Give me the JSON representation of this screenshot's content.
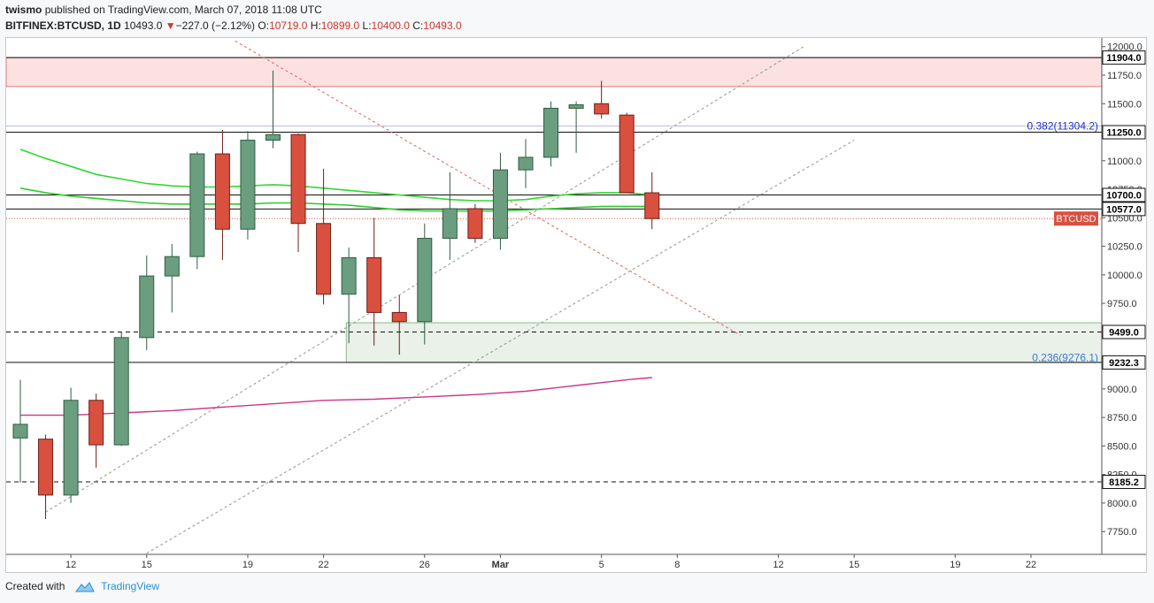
{
  "header": {
    "author": "twismo",
    "published_text": "published on TradingView.com, March 07, 2018 11:08 UTC",
    "symbol": "BITFINEX:BTCUSD, 1D",
    "last": "10493.0",
    "change_arrow": "▼",
    "change": "−227.0 (−2.12%)",
    "o_label": "O:",
    "o": "10719.0",
    "h_label": "H:",
    "h": "10899.0",
    "l_label": "L:",
    "l": "10400.0",
    "c_label": "C:",
    "c": "10493.0"
  },
  "footer": {
    "created_with": "Created with",
    "brand": "TradingView"
  },
  "chart_data": {
    "type": "candlestick",
    "ylim": [
      7550,
      12060
    ],
    "y_ticks": [
      7750,
      8000,
      8250,
      8500,
      8750,
      9000,
      9250,
      9500,
      9750,
      10000,
      10250,
      10500,
      10750,
      11000,
      11250,
      11500,
      11750,
      12000
    ],
    "y_tick_labels": [
      "7750.0",
      "8000.0",
      "8250.0",
      "8500.0",
      "8750.0",
      "9000.0",
      "9250.0",
      "9500.0",
      "9750.0",
      "10000.0",
      "10250.0",
      "10500.0",
      "10750.0",
      "11000.0",
      "11250.0",
      "11500.0",
      "11750.0",
      "12000.0"
    ],
    "x_ticks": [
      {
        "idx": 2,
        "label": "12"
      },
      {
        "idx": 5,
        "label": "15"
      },
      {
        "idx": 9,
        "label": "19"
      },
      {
        "idx": 12,
        "label": "22"
      },
      {
        "idx": 16,
        "label": "26"
      },
      {
        "idx": 19,
        "label": "Mar"
      },
      {
        "idx": 23,
        "label": "5"
      },
      {
        "idx": 26,
        "label": "8"
      },
      {
        "idx": 30,
        "label": "12"
      },
      {
        "idx": 33,
        "label": "15"
      },
      {
        "idx": 37,
        "label": "19"
      },
      {
        "idx": 40,
        "label": "22"
      }
    ],
    "candles": [
      {
        "o": 8570,
        "h": 9080,
        "l": 8180,
        "c": 8690
      },
      {
        "o": 8560,
        "h": 8600,
        "l": 7860,
        "c": 8070
      },
      {
        "o": 8070,
        "h": 9010,
        "l": 8000,
        "c": 8900
      },
      {
        "o": 8900,
        "h": 8960,
        "l": 8310,
        "c": 8510
      },
      {
        "o": 8510,
        "h": 9500,
        "l": 8500,
        "c": 9450
      },
      {
        "o": 9450,
        "h": 10170,
        "l": 9340,
        "c": 9990
      },
      {
        "o": 9990,
        "h": 10270,
        "l": 9670,
        "c": 10160
      },
      {
        "o": 10160,
        "h": 11080,
        "l": 10050,
        "c": 11060
      },
      {
        "o": 11060,
        "h": 11270,
        "l": 10130,
        "c": 10400
      },
      {
        "o": 10400,
        "h": 11260,
        "l": 10310,
        "c": 11180
      },
      {
        "o": 11180,
        "h": 11790,
        "l": 11110,
        "c": 11230
      },
      {
        "o": 11230,
        "h": 11240,
        "l": 10200,
        "c": 10450
      },
      {
        "o": 10450,
        "h": 10930,
        "l": 9740,
        "c": 9830
      },
      {
        "o": 9830,
        "h": 10240,
        "l": 9400,
        "c": 10150
      },
      {
        "o": 10150,
        "h": 10500,
        "l": 9380,
        "c": 9670
      },
      {
        "o": 9670,
        "h": 9820,
        "l": 9300,
        "c": 9590
      },
      {
        "o": 9590,
        "h": 10450,
        "l": 9390,
        "c": 10320
      },
      {
        "o": 10320,
        "h": 10900,
        "l": 10130,
        "c": 10580
      },
      {
        "o": 10580,
        "h": 10620,
        "l": 10280,
        "c": 10320
      },
      {
        "o": 10320,
        "h": 11070,
        "l": 10220,
        "c": 10920
      },
      {
        "o": 10920,
        "h": 11190,
        "l": 10760,
        "c": 11030
      },
      {
        "o": 11030,
        "h": 11520,
        "l": 10950,
        "c": 11460
      },
      {
        "o": 11460,
        "h": 11520,
        "l": 11070,
        "c": 11490
      },
      {
        "o": 11500,
        "h": 11700,
        "l": 11370,
        "c": 11410
      },
      {
        "o": 11400,
        "h": 11420,
        "l": 10730,
        "c": 10720
      },
      {
        "o": 10719,
        "h": 10899,
        "l": 10400,
        "c": 10493
      }
    ],
    "ma_fast": [
      [
        0,
        11100
      ],
      [
        1,
        11020
      ],
      [
        2,
        10950
      ],
      [
        3,
        10880
      ],
      [
        4,
        10840
      ],
      [
        5,
        10800
      ],
      [
        6,
        10780
      ],
      [
        7,
        10770
      ],
      [
        8,
        10770
      ],
      [
        9,
        10780
      ],
      [
        10,
        10790
      ],
      [
        11,
        10780
      ],
      [
        12,
        10760
      ],
      [
        13,
        10740
      ],
      [
        14,
        10720
      ],
      [
        15,
        10700
      ],
      [
        16,
        10680
      ],
      [
        17,
        10660
      ],
      [
        18,
        10650
      ],
      [
        19,
        10650
      ],
      [
        20,
        10660
      ],
      [
        21,
        10690
      ],
      [
        22,
        10710
      ],
      [
        23,
        10720
      ],
      [
        24,
        10720
      ],
      [
        25,
        10700
      ]
    ],
    "ma_slow": [
      [
        0,
        10760
      ],
      [
        1,
        10720
      ],
      [
        2,
        10690
      ],
      [
        3,
        10670
      ],
      [
        4,
        10650
      ],
      [
        5,
        10630
      ],
      [
        6,
        10620
      ],
      [
        7,
        10620
      ],
      [
        8,
        10620
      ],
      [
        9,
        10620
      ],
      [
        10,
        10630
      ],
      [
        11,
        10630
      ],
      [
        12,
        10620
      ],
      [
        13,
        10610
      ],
      [
        14,
        10590
      ],
      [
        15,
        10570
      ],
      [
        16,
        10560
      ],
      [
        17,
        10560
      ],
      [
        18,
        10560
      ],
      [
        19,
        10560
      ],
      [
        20,
        10570
      ],
      [
        21,
        10580
      ],
      [
        22,
        10590
      ],
      [
        23,
        10600
      ],
      [
        24,
        10600
      ],
      [
        25,
        10600
      ]
    ],
    "ma_long": [
      [
        0,
        8770
      ],
      [
        2,
        8770
      ],
      [
        4,
        8790
      ],
      [
        6,
        8810
      ],
      [
        8,
        8840
      ],
      [
        10,
        8870
      ],
      [
        12,
        8900
      ],
      [
        14,
        8910
      ],
      [
        16,
        8930
      ],
      [
        18,
        8950
      ],
      [
        20,
        8980
      ],
      [
        22,
        9030
      ],
      [
        24,
        9080
      ],
      [
        25,
        9100
      ]
    ],
    "levels": [
      {
        "value": 11904.0,
        "label": "11904.0",
        "style": "solid"
      },
      {
        "value": 11250.0,
        "label": "11250.0",
        "style": "solid"
      },
      {
        "value": 10700.0,
        "label": "10700.0",
        "style": "solid"
      },
      {
        "value": 10577.0,
        "label": "10577.0",
        "style": "solid"
      },
      {
        "value": 9499.0,
        "label": "9499.0",
        "style": "dashed"
      },
      {
        "value": 9232.3,
        "label": "9232.3",
        "style": "solid"
      },
      {
        "value": 8185.2,
        "label": "8185.2",
        "style": "dashed"
      }
    ],
    "current_price": {
      "value": 10493.0,
      "label": "BTCUSD"
    },
    "zones": [
      {
        "kind": "resistance",
        "y0": 11650,
        "y1": 11904,
        "x0": -1,
        "x1": 43
      },
      {
        "kind": "support",
        "y0": 9232,
        "y1": 9580,
        "x0": 12.9,
        "x1": 43
      }
    ],
    "fib_labels": [
      {
        "label": "0.382(11304.2)",
        "value": 11304.2,
        "color": "#1c2fd1"
      },
      {
        "label": "0.236(9276.1)",
        "value": 9276.1,
        "color": "#3a78d8"
      }
    ],
    "fib_line_value": 11304.2,
    "trendlines": [
      {
        "p1": [
          1,
          7920
        ],
        "p2": [
          31,
          12000
        ],
        "color": "#8a9a88"
      },
      {
        "p1": [
          5,
          7560
        ],
        "p2": [
          33,
          11180
        ],
        "color": "#8a9a88"
      },
      {
        "p1": [
          8.5,
          12050
        ],
        "p2": [
          28.5,
          9470
        ],
        "color": "#e06060"
      }
    ],
    "colors": {
      "up": "#6a9e7f",
      "down": "#d9503f",
      "ma_fast": "#33d633",
      "ma_slow": "#2ecc2e",
      "ma_long": "#c9378a",
      "up_border": "#2f5d42",
      "down_border": "#6e1f16"
    }
  }
}
